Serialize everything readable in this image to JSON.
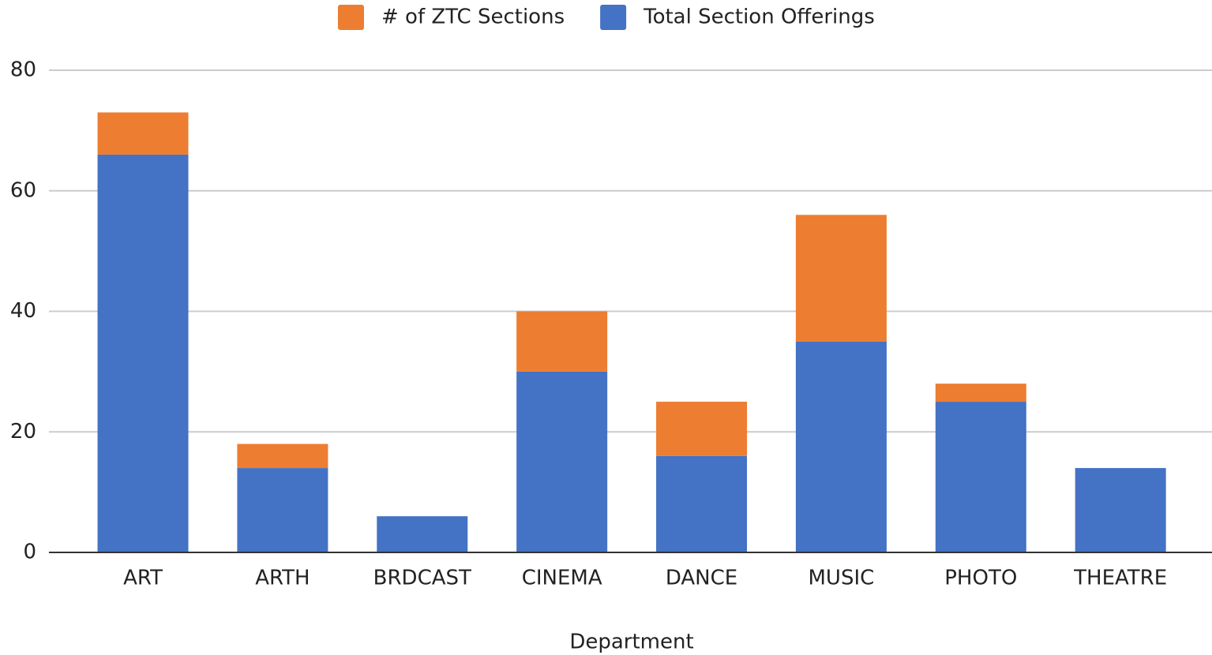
{
  "chart_data": {
    "type": "stacked_bar",
    "x_label": "Department",
    "categories": [
      "ART",
      "ARTH",
      "BRDCAST",
      "CINEMA",
      "DANCE",
      "MUSIC",
      "PHOTO",
      "THEATRE"
    ],
    "series": [
      {
        "name": "# of ZTC Sections",
        "color": "#ed7d31",
        "values": [
          7,
          4,
          0,
          10,
          9,
          21,
          3,
          0
        ]
      },
      {
        "name": "Total Section Offerings",
        "color": "#4472c4",
        "values": [
          66,
          14,
          6,
          30,
          16,
          35,
          25,
          14
        ]
      }
    ],
    "ylim": [
      0,
      80
    ],
    "yticks": [
      0,
      20,
      40,
      60,
      80
    ],
    "grid": true,
    "legend": "top"
  }
}
